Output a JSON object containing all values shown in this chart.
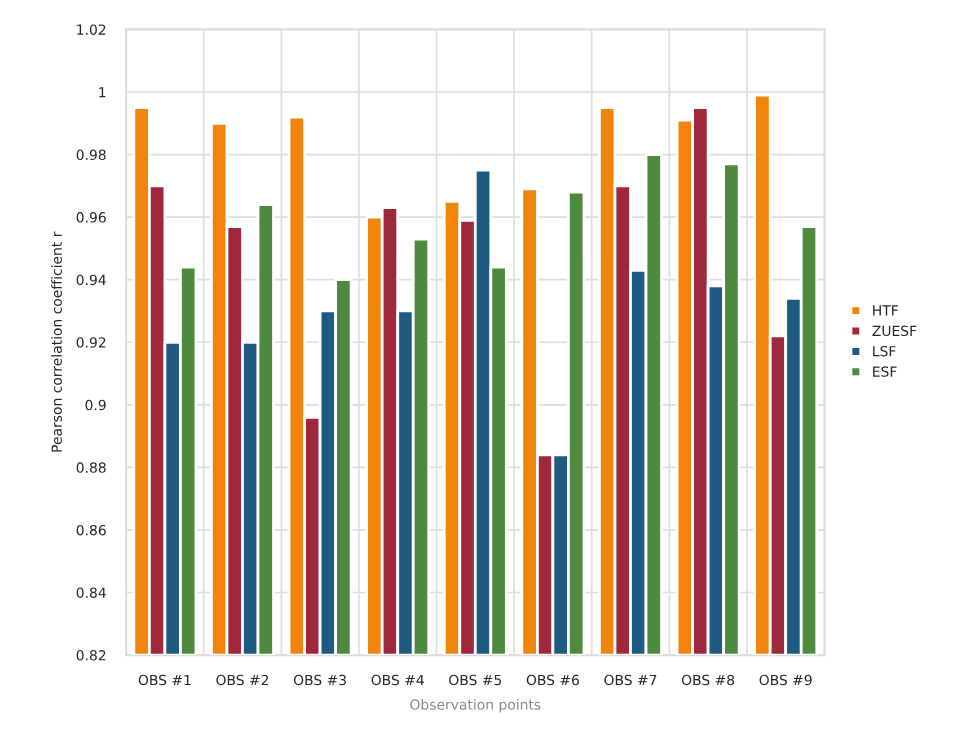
{
  "chart_data": {
    "type": "bar",
    "xlabel": "Observation points",
    "ylabel": "Pearson correlation coefficient r",
    "categories": [
      "OBS #1",
      "OBS #2",
      "OBS #3",
      "OBS #4",
      "OBS #5",
      "OBS #6",
      "OBS #7",
      "OBS #8",
      "OBS #9"
    ],
    "series": [
      {
        "name": "HTF",
        "color": "#f0840c",
        "values": [
          0.995,
          0.99,
          0.992,
          0.96,
          0.965,
          0.969,
          0.995,
          0.991,
          0.999
        ]
      },
      {
        "name": "ZUESF",
        "color": "#a0283c",
        "values": [
          0.97,
          0.957,
          0.896,
          0.963,
          0.959,
          0.884,
          0.97,
          0.995,
          0.922
        ]
      },
      {
        "name": "LSF",
        "color": "#1f5a80",
        "values": [
          0.92,
          0.92,
          0.93,
          0.93,
          0.975,
          0.884,
          0.943,
          0.938,
          0.934
        ]
      },
      {
        "name": "ESF",
        "color": "#4e8a3e",
        "values": [
          0.944,
          0.964,
          0.94,
          0.953,
          0.944,
          0.968,
          0.98,
          0.977,
          0.957
        ]
      }
    ],
    "ylim": [
      0.82,
      1.02
    ],
    "yticks": [
      0.82,
      0.84,
      0.86,
      0.88,
      0.9,
      0.92,
      0.94,
      0.96,
      0.98,
      1,
      1.02
    ],
    "grid": "y",
    "legend": "right"
  }
}
